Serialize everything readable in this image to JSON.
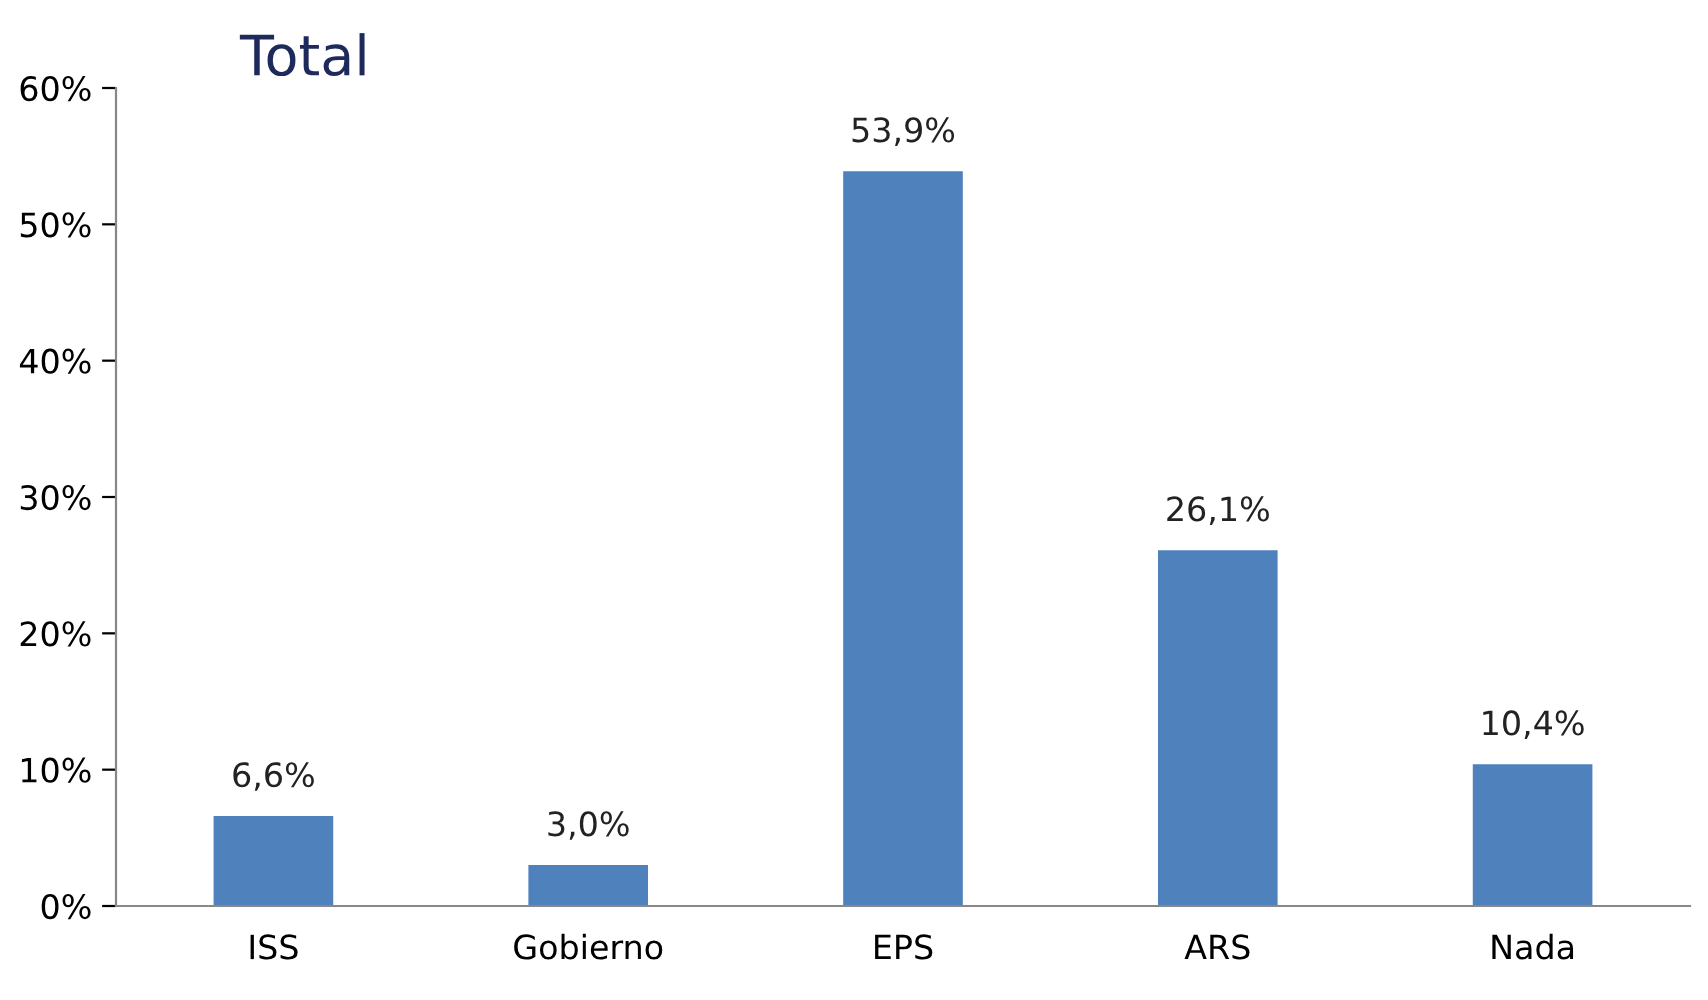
{
  "chart_data": {
    "type": "bar",
    "title": "Total",
    "categories": [
      "ISS",
      "Gobierno",
      "EPS",
      "ARS",
      "Nada"
    ],
    "values": [
      6.6,
      3.0,
      53.9,
      26.1,
      10.4
    ],
    "value_labels": [
      "6,6%",
      "3,0%",
      "53,9%",
      "26,1%",
      "10,4%"
    ],
    "color": "#4f81bd",
    "ylim": [
      0,
      60
    ],
    "yticks": [
      {
        "value": 0,
        "label": "0%"
      },
      {
        "value": 10,
        "label": "10%"
      },
      {
        "value": 20,
        "label": "20%"
      },
      {
        "value": 30,
        "label": "30%"
      },
      {
        "value": 40,
        "label": "40%"
      },
      {
        "value": 50,
        "label": "50%"
      },
      {
        "value": 60,
        "label": "60%"
      }
    ],
    "grid": false,
    "legend": false
  }
}
